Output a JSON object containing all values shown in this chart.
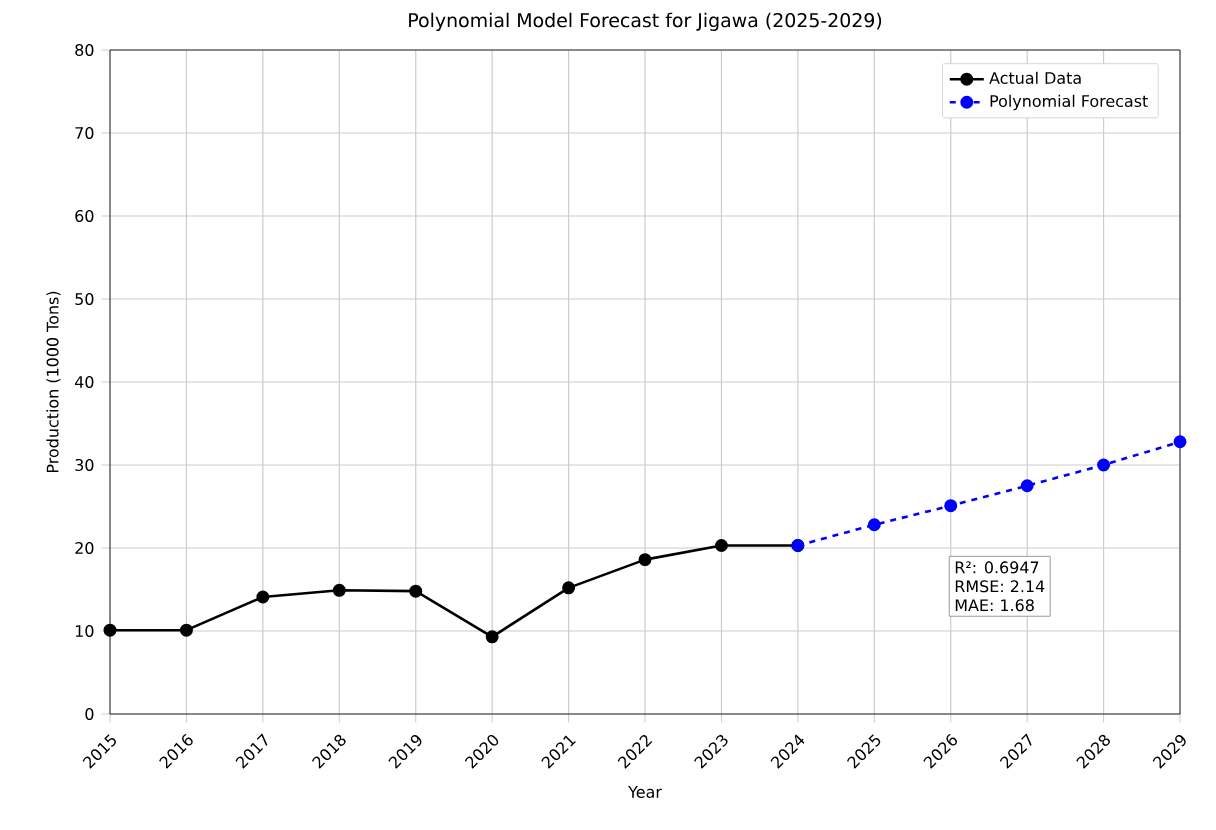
{
  "chart_data": {
    "type": "line",
    "title": "Polynomial Model Forecast for Jigawa (2025-2029)",
    "xlabel": "Year",
    "ylabel": "Production (1000 Tons)",
    "series": [
      {
        "name": "Actual Data",
        "color": "#000000",
        "line_style": "solid",
        "x": [
          2015,
          2016,
          2017,
          2018,
          2019,
          2020,
          2021,
          2022,
          2023,
          2024
        ],
        "values": [
          10.1,
          10.1,
          14.1,
          14.9,
          14.8,
          9.3,
          15.2,
          18.6,
          20.3,
          20.3
        ]
      },
      {
        "name": "Polynomial Forecast",
        "color": "#0000ff",
        "line_style": "dashed",
        "x": [
          2024,
          2025,
          2026,
          2027,
          2028,
          2029
        ],
        "values": [
          20.3,
          22.8,
          25.1,
          27.5,
          30.0,
          32.8
        ]
      }
    ],
    "xlim": [
      2015,
      2029
    ],
    "xticks": [
      2015,
      2016,
      2017,
      2018,
      2019,
      2020,
      2021,
      2022,
      2023,
      2024,
      2025,
      2026,
      2027,
      2028,
      2029
    ],
    "ylim": [
      0,
      80
    ],
    "yticks": [
      0,
      10,
      20,
      30,
      40,
      50,
      60,
      70,
      80
    ],
    "grid": true,
    "legend": "top right",
    "marker": "circle",
    "annotations": [
      "R²: 0.6947",
      "RMSE: 2.14",
      "MAE: 1.68"
    ]
  }
}
